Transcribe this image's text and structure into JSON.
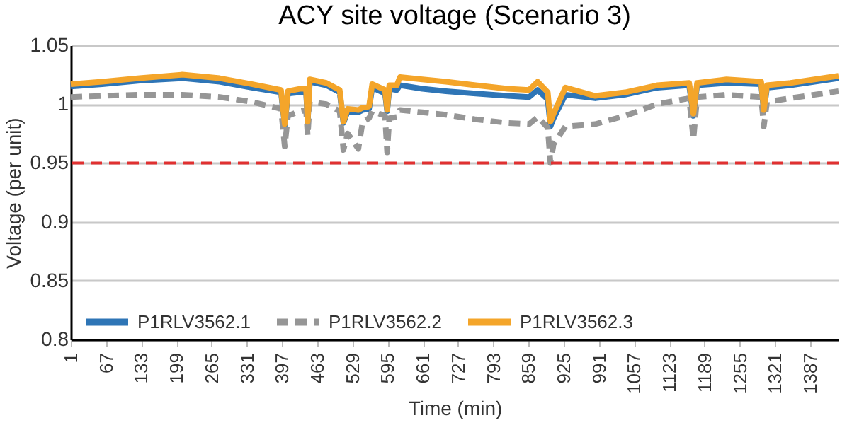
{
  "chart_data": {
    "type": "line",
    "title": "ACY site voltage (Scenario 3)",
    "xlabel": "Time (min)",
    "ylabel": "Voltage (per unit)",
    "x": [
      1,
      60,
      130,
      210,
      280,
      340,
      395,
      402,
      408,
      430,
      442,
      445,
      449,
      480,
      505,
      512,
      520,
      540,
      548,
      560,
      566,
      590,
      594,
      598,
      612,
      618,
      660,
      704,
      760,
      820,
      860,
      876,
      895,
      900,
      906,
      928,
      984,
      1040,
      1100,
      1160,
      1168,
      1175,
      1230,
      1295,
      1300,
      1306,
      1350,
      1440
    ],
    "series": [
      {
        "name": "P1RLV3562.1",
        "color": "#2e75b6",
        "line_style": "solid",
        "values": [
          1.015,
          1.017,
          1.02,
          1.022,
          1.019,
          1.014,
          1.01,
          0.982,
          1.009,
          1.01,
          1.011,
          0.984,
          1.019,
          1.016,
          1.01,
          0.984,
          0.994,
          0.993,
          0.995,
          0.996,
          1.014,
          1.009,
          0.994,
          1.013,
          1.012,
          1.016,
          1.013,
          1.011,
          1.009,
          1.007,
          1.006,
          1.012,
          1.004,
          0.981,
          0.988,
          1.008,
          1.005,
          1.008,
          1.014,
          1.016,
          0.99,
          1.016,
          1.018,
          1.017,
          0.994,
          1.014,
          1.016,
          1.022
        ]
      },
      {
        "name": "P1RLV3562.2",
        "color": "#969696",
        "line_style": "dashed",
        "values": [
          1.006,
          1.007,
          1.008,
          1.008,
          1.006,
          1.002,
          0.996,
          0.964,
          0.99,
          0.994,
          0.995,
          0.973,
          1.002,
          1.0,
          0.994,
          0.961,
          0.975,
          0.962,
          0.985,
          0.988,
          0.994,
          0.99,
          0.959,
          0.988,
          0.989,
          0.995,
          0.993,
          0.991,
          0.987,
          0.984,
          0.983,
          0.989,
          0.98,
          0.95,
          0.966,
          0.981,
          0.983,
          0.99,
          1.0,
          1.005,
          0.97,
          1.006,
          1.008,
          1.006,
          0.981,
          1.002,
          1.005,
          1.011
        ]
      },
      {
        "name": "P1RLV3562.3",
        "color": "#f4a52a",
        "line_style": "solid",
        "values": [
          1.017,
          1.019,
          1.022,
          1.025,
          1.022,
          1.017,
          1.012,
          0.983,
          1.011,
          1.013,
          1.013,
          0.985,
          1.021,
          1.018,
          1.012,
          0.985,
          0.996,
          0.995,
          0.997,
          0.998,
          1.017,
          1.012,
          0.995,
          1.016,
          1.016,
          1.023,
          1.021,
          1.019,
          1.016,
          1.013,
          1.012,
          1.019,
          1.01,
          0.985,
          0.992,
          1.014,
          1.007,
          1.01,
          1.016,
          1.018,
          0.992,
          1.018,
          1.021,
          1.019,
          0.995,
          1.016,
          1.018,
          1.024
        ]
      }
    ],
    "xlim": [
      1,
      1440
    ],
    "xticks": [
      1,
      67,
      133,
      199,
      265,
      331,
      397,
      463,
      529,
      595,
      661,
      727,
      793,
      859,
      925,
      991,
      1057,
      1123,
      1189,
      1255,
      1321,
      1387
    ],
    "ylim": [
      0.8,
      1.05
    ],
    "yticks": [
      0.8,
      0.85,
      0.9,
      0.95,
      1,
      1.05
    ],
    "ref_lines": [
      {
        "axis": "y",
        "value": 0.95,
        "color": "#e03030",
        "line_style": "dashed"
      }
    ],
    "grid": "y",
    "legend": "bottom"
  }
}
